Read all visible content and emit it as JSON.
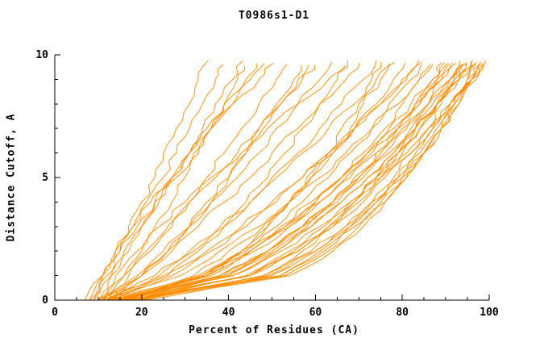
{
  "chart_data": {
    "type": "line",
    "title": "T0986s1-D1",
    "xlabel": "Percent of Residues (CA)",
    "ylabel": "Distance Cutoff, A",
    "xlim": [
      0,
      100
    ],
    "ylim": [
      0,
      10
    ],
    "x_major_ticks": [
      0,
      20,
      40,
      60,
      80,
      100
    ],
    "x_minor_step": 5,
    "y_major_ticks": [
      0,
      5,
      10
    ],
    "y_minor_step": 1,
    "grid": false,
    "legend": "none",
    "line_color": "#ff8c00",
    "axis_color": "#000000",
    "background": "#ffffff",
    "y_samples": [
      0,
      1,
      2,
      3,
      4,
      5,
      6,
      7,
      8,
      9,
      10
    ],
    "series": [
      {
        "x": [
          7,
          11,
          14,
          17,
          20,
          23,
          25,
          28,
          31,
          33,
          36
        ]
      },
      {
        "x": [
          9,
          12,
          15,
          18,
          21,
          25,
          28,
          31,
          34,
          37,
          40
        ]
      },
      {
        "x": [
          10,
          16,
          20,
          23,
          27,
          30,
          33,
          36,
          39,
          42,
          45
        ]
      },
      {
        "x": [
          8,
          11,
          15,
          19,
          23,
          28,
          32,
          36,
          41,
          45,
          50
        ]
      },
      {
        "x": [
          12,
          17,
          22,
          27,
          31,
          35,
          39,
          43,
          47,
          51,
          55
        ]
      },
      {
        "x": [
          10,
          20,
          26,
          31,
          35,
          40,
          44,
          47,
          51,
          55,
          58
        ]
      },
      {
        "x": [
          11,
          16,
          21,
          26,
          31,
          37,
          42,
          47,
          52,
          57,
          62
        ]
      },
      {
        "x": [
          9,
          11,
          14,
          18,
          22,
          27,
          31,
          36,
          41,
          47,
          52
        ]
      },
      {
        "x": [
          10,
          19,
          25,
          31,
          36,
          42,
          47,
          51,
          56,
          61,
          65
        ]
      },
      {
        "x": [
          12,
          26,
          33,
          39,
          44,
          49,
          53,
          57,
          61,
          65,
          68
        ]
      },
      {
        "x": [
          13,
          20,
          27,
          33,
          39,
          45,
          50,
          56,
          61,
          67,
          72
        ]
      },
      {
        "x": [
          11,
          24,
          32,
          39,
          45,
          50,
          56,
          61,
          66,
          71,
          75
        ]
      },
      {
        "x": [
          14,
          34,
          43,
          49,
          54,
          59,
          64,
          68,
          71,
          75,
          78
        ]
      },
      {
        "x": [
          12,
          23,
          31,
          38,
          45,
          51,
          57,
          63,
          69,
          74,
          80
        ]
      },
      {
        "x": [
          15,
          32,
          40,
          48,
          54,
          59,
          64,
          69,
          74,
          78,
          82
        ]
      },
      {
        "x": [
          13,
          27,
          36,
          44,
          51,
          57,
          63,
          69,
          75,
          80,
          85
        ]
      },
      {
        "x": [
          10,
          14,
          19,
          24,
          30,
          36,
          43,
          49,
          56,
          63,
          70
        ]
      },
      {
        "x": [
          16,
          35,
          43,
          49,
          54,
          58,
          63,
          66,
          70,
          73,
          76
        ]
      },
      {
        "x": [
          12,
          36,
          46,
          54,
          60,
          66,
          71,
          76,
          80,
          84,
          88
        ]
      },
      {
        "x": [
          14,
          41,
          51,
          58,
          64,
          70,
          74,
          79,
          83,
          87,
          90
        ]
      },
      {
        "x": [
          15,
          39,
          49,
          57,
          64,
          69,
          75,
          79,
          84,
          88,
          92
        ]
      },
      {
        "x": [
          13,
          45,
          56,
          63,
          69,
          74,
          79,
          83,
          87,
          91,
          94
        ]
      },
      {
        "x": [
          16,
          38,
          49,
          57,
          64,
          70,
          76,
          81,
          86,
          91,
          95
        ]
      },
      {
        "x": [
          17,
          45,
          55,
          63,
          69,
          75,
          80,
          84,
          88,
          92,
          96
        ]
      },
      {
        "x": [
          12,
          39,
          50,
          59,
          66,
          72,
          78,
          83,
          88,
          93,
          97
        ]
      },
      {
        "x": [
          18,
          50,
          60,
          67,
          73,
          79,
          83,
          87,
          91,
          95,
          98
        ]
      },
      {
        "x": [
          15,
          45,
          56,
          64,
          71,
          76,
          82,
          87,
          91,
          95,
          99
        ]
      },
      {
        "x": [
          14,
          41,
          52,
          61,
          68,
          75,
          81,
          86,
          91,
          96,
          100
        ]
      },
      {
        "x": [
          16,
          49,
          60,
          68,
          74,
          80,
          85,
          89,
          93,
          97,
          100
        ]
      },
      {
        "x": [
          19,
          54,
          64,
          71,
          76,
          81,
          85,
          89,
          92,
          95,
          98
        ]
      },
      {
        "x": [
          20,
          44,
          54,
          62,
          68,
          74,
          79,
          84,
          88,
          92,
          96
        ]
      },
      {
        "x": [
          13,
          33,
          44,
          52,
          59,
          66,
          72,
          78,
          83,
          88,
          93
        ]
      },
      {
        "x": [
          17,
          52,
          61,
          68,
          74,
          78,
          82,
          86,
          89,
          92,
          95
        ]
      },
      {
        "x": [
          18,
          40,
          51,
          59,
          66,
          72,
          78,
          83,
          88,
          93,
          97
        ]
      },
      {
        "x": [
          15,
          35,
          45,
          53,
          61,
          67,
          73,
          79,
          84,
          89,
          94
        ]
      },
      {
        "x": [
          12,
          34,
          45,
          53,
          60,
          66,
          72,
          77,
          82,
          87,
          91
        ]
      },
      {
        "x": [
          16,
          53,
          63,
          70,
          76,
          81,
          85,
          89,
          93,
          96,
          99
        ]
      },
      {
        "x": [
          14,
          35,
          45,
          54,
          61,
          68,
          74,
          80,
          86,
          91,
          96
        ]
      },
      {
        "x": [
          20,
          48,
          59,
          67,
          73,
          79,
          84,
          88,
          92,
          96,
          100
        ]
      },
      {
        "x": [
          11,
          29,
          38,
          47,
          54,
          61,
          67,
          73,
          79,
          84,
          89
        ]
      },
      {
        "x": [
          8,
          13,
          17,
          20,
          24,
          27,
          31,
          34,
          37,
          41,
          44
        ]
      },
      {
        "x": [
          11,
          13,
          16,
          20,
          23,
          27,
          31,
          35,
          39,
          44,
          48
        ]
      },
      {
        "x": [
          13,
          20,
          26,
          31,
          36,
          40,
          44,
          48,
          52,
          56,
          60
        ]
      },
      {
        "x": [
          17,
          34,
          43,
          51,
          57,
          63,
          68,
          73,
          77,
          82,
          86
        ]
      },
      {
        "x": [
          19,
          48,
          57,
          64,
          70,
          74,
          79,
          82,
          86,
          89,
          92
        ]
      },
      {
        "x": [
          14,
          38,
          49,
          57,
          65,
          71,
          77,
          83,
          88,
          93,
          98
        ]
      },
      {
        "x": [
          21,
          52,
          62,
          69,
          75,
          80,
          85,
          89,
          92,
          96,
          99
        ]
      },
      {
        "x": [
          10,
          25,
          35,
          43,
          50,
          57,
          63,
          69,
          75,
          81,
          86
        ]
      }
    ]
  }
}
